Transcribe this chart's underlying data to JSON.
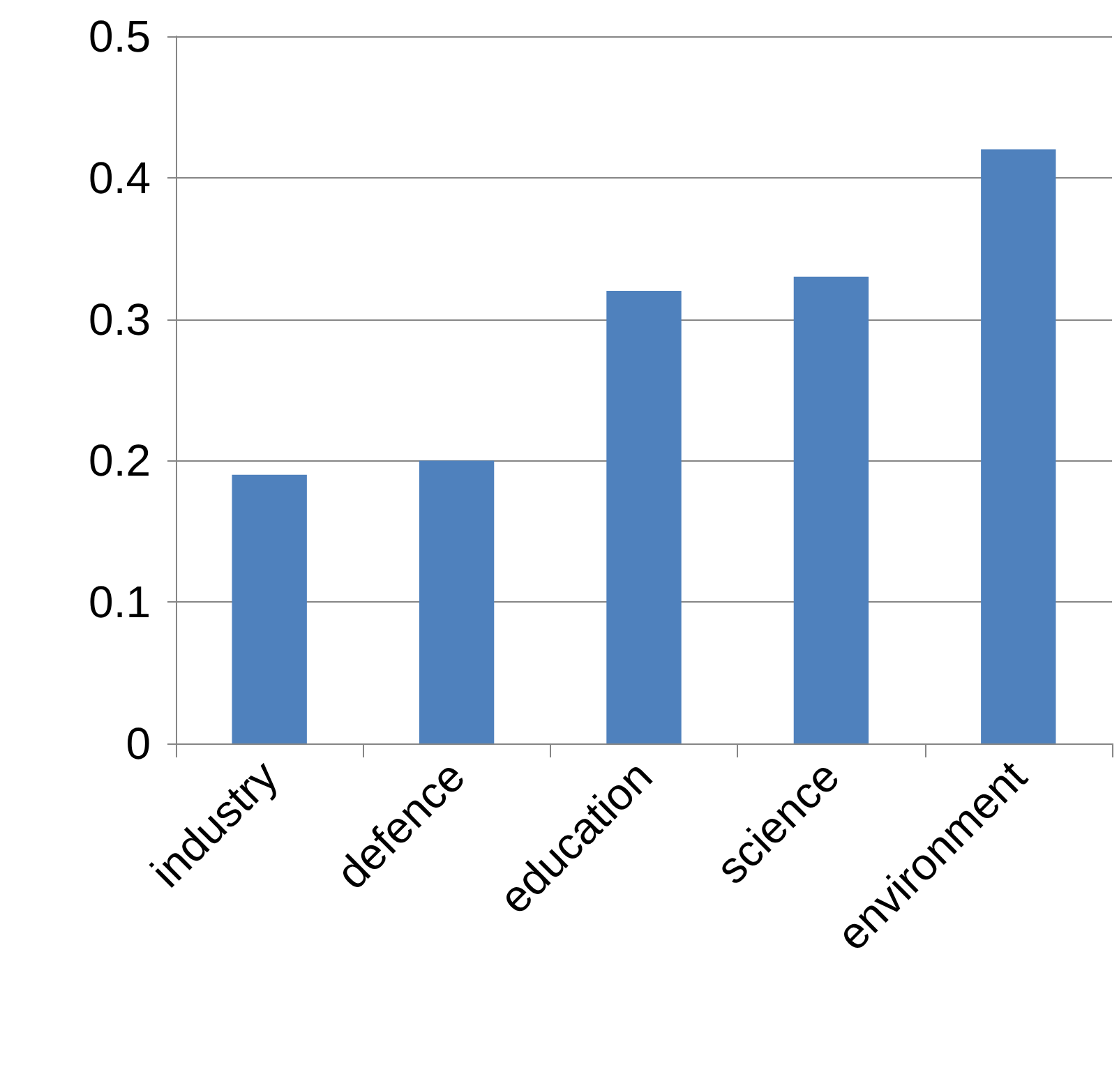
{
  "chart_data": {
    "type": "bar",
    "categories": [
      "industry",
      "defence",
      "education",
      "science",
      "environment"
    ],
    "values": [
      0.19,
      0.2,
      0.32,
      0.33,
      0.42
    ],
    "color": "#4f81bd",
    "ylim": [
      0,
      0.5
    ],
    "yticks": [
      0,
      0.1,
      0.2,
      0.3,
      0.4,
      0.5
    ],
    "grid": "y"
  }
}
